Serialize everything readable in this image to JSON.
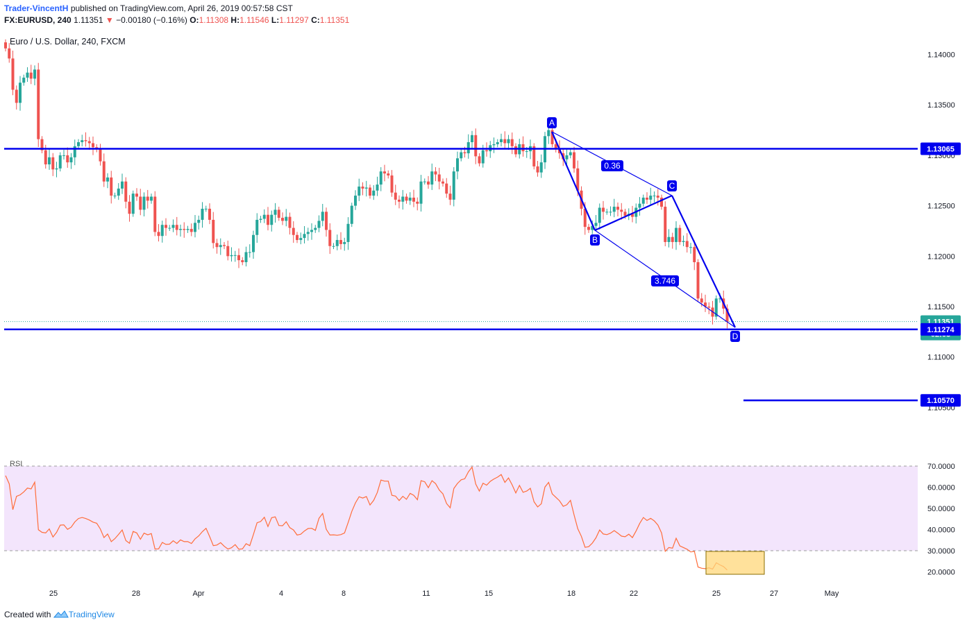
{
  "header": {
    "author": "Trader-VincentH",
    "published": "published on TradingView.com, April 26, 2019 00:57:58 CST",
    "symbol": "FX:EURUSD, 240",
    "last": "1.11351",
    "change": "−0.00180 (−0.16%)",
    "o_label": "O:",
    "o": "1.11308",
    "h_label": "H:",
    "h": "1.11546",
    "l_label": "L:",
    "l": "1.11297",
    "c_label": "C:",
    "c": "1.11351",
    "instrument": "Euro / U.S. Dollar, 240, FXCM"
  },
  "footer": {
    "created_with": "Created with",
    "brand": "TradingView"
  },
  "colors": {
    "up": "#26a69a",
    "down": "#ef5350",
    "line": "#0000ee",
    "rsi": "#ff6d3a",
    "rsi_band": "#f3e5fc"
  },
  "chart_data": [
    {
      "type": "candlestick",
      "title": "Euro / U.S. Dollar, 240, FXCM",
      "x_tick_labels": [
        "25",
        "28",
        "Apr",
        "4",
        "8",
        "11",
        "15",
        "18",
        "22",
        "25",
        "27",
        "May"
      ],
      "y_ticks": [
        "1.14000",
        "1.13500",
        "1.13000",
        "1.12500",
        "1.12000",
        "1.11500",
        "1.11000",
        "1.10500"
      ],
      "ylim": [
        1.1035,
        1.1435
      ],
      "closes": [
        1.1406,
        1.1396,
        1.1365,
        1.1352,
        1.1372,
        1.1377,
        1.1382,
        1.1376,
        1.1385,
        1.1316,
        1.1305,
        1.1291,
        1.1298,
        1.1286,
        1.1287,
        1.13,
        1.13,
        1.1293,
        1.1298,
        1.1309,
        1.1313,
        1.1315,
        1.1314,
        1.1312,
        1.1308,
        1.1306,
        1.1294,
        1.1274,
        1.1278,
        1.126,
        1.126,
        1.1267,
        1.1274,
        1.1254,
        1.1242,
        1.1262,
        1.1259,
        1.1246,
        1.1259,
        1.1255,
        1.1259,
        1.1224,
        1.122,
        1.1231,
        1.1228,
        1.1228,
        1.1231,
        1.1226,
        1.1227,
        1.1226,
        1.1227,
        1.1224,
        1.1233,
        1.1236,
        1.1247,
        1.1247,
        1.1236,
        1.1213,
        1.1209,
        1.1211,
        1.121,
        1.12,
        1.1201,
        1.1201,
        1.1196,
        1.1194,
        1.1204,
        1.1204,
        1.1221,
        1.1236,
        1.1237,
        1.1241,
        1.1231,
        1.1241,
        1.1246,
        1.1238,
        1.1235,
        1.1239,
        1.1228,
        1.1221,
        1.1216,
        1.1218,
        1.1222,
        1.1224,
        1.1226,
        1.1228,
        1.1235,
        1.1244,
        1.1226,
        1.121,
        1.121,
        1.1216,
        1.1212,
        1.1214,
        1.1232,
        1.125,
        1.126,
        1.1269,
        1.1267,
        1.1268,
        1.126,
        1.1265,
        1.1271,
        1.1284,
        1.1282,
        1.128,
        1.1263,
        1.1256,
        1.1254,
        1.1259,
        1.1255,
        1.1258,
        1.1254,
        1.1252,
        1.1274,
        1.1274,
        1.1271,
        1.1284,
        1.1281,
        1.1274,
        1.1272,
        1.1262,
        1.1256,
        1.1284,
        1.1297,
        1.1303,
        1.1302,
        1.1313,
        1.132,
        1.1299,
        1.1292,
        1.1305,
        1.1304,
        1.131,
        1.1311,
        1.1313,
        1.1316,
        1.1312,
        1.1316,
        1.1309,
        1.1301,
        1.1311,
        1.1304,
        1.1304,
        1.1309,
        1.1289,
        1.1283,
        1.1293,
        1.1319,
        1.1325,
        1.1311,
        1.1307,
        1.1302,
        1.1296,
        1.13,
        1.1303,
        1.1287,
        1.1265,
        1.1247,
        1.1229,
        1.1226,
        1.123,
        1.1233,
        1.1248,
        1.1244,
        1.1244,
        1.1244,
        1.1249,
        1.1246,
        1.1244,
        1.124,
        1.1242,
        1.1239,
        1.1248,
        1.1252,
        1.1258,
        1.1256,
        1.126,
        1.126,
        1.1258,
        1.1249,
        1.1214,
        1.1219,
        1.1214,
        1.1228,
        1.1214,
        1.1215,
        1.1209,
        1.1209,
        1.1194,
        1.1158,
        1.1154,
        1.115,
        1.1149,
        1.114,
        1.1158,
        1.1158,
        1.1148,
        1.1135
      ],
      "annotations": {
        "horizontal_lines": [
          "1.13065",
          "1.11274",
          "1.10570"
        ],
        "last_price": "1.11351",
        "countdown": "02:03",
        "pattern_points": [
          "A",
          "B",
          "C",
          "D"
        ],
        "ratios": [
          "0.36",
          "3.746"
        ]
      }
    },
    {
      "type": "line",
      "title": "RSI",
      "y_ticks": [
        "70.0000",
        "60.0000",
        "50.0000",
        "40.0000",
        "30.0000",
        "20.0000"
      ],
      "ylim": [
        16,
        73
      ],
      "band": [
        30,
        70
      ],
      "values": [
        65.5,
        61.6,
        49.4,
        55.7,
        56.4,
        57.8,
        59.6,
        59.2,
        62.4,
        39.9,
        38.7,
        38.4,
        40.3,
        36.5,
        38.7,
        42.1,
        42.2,
        40.1,
        41.1,
        43.6,
        45.2,
        45.7,
        45.2,
        44.5,
        43.5,
        43.0,
        40.3,
        36.2,
        37.9,
        34.3,
        35.7,
        37.7,
        39.8,
        34.8,
        33.5,
        39.1,
        38.4,
        35.4,
        38.3,
        37.5,
        38.1,
        30.8,
        30.9,
        33.9,
        33.0,
        33.1,
        34.7,
        33.4,
        35.1,
        34.3,
        34.3,
        33.4,
        35.6,
        37.0,
        39.0,
        40.6,
        36.7,
        32.4,
        32.7,
        33.8,
        32.1,
        30.8,
        31.4,
        32.9,
        30.7,
        30.9,
        33.3,
        32.4,
        37.6,
        43.2,
        43.8,
        45.8,
        41.4,
        45.6,
        46.0,
        41.9,
        41.8,
        43.7,
        40.9,
        39.8,
        37.4,
        37.8,
        39.3,
        40.5,
        40.6,
        39.6,
        45.3,
        47.6,
        40.1,
        37.4,
        37.5,
        37.3,
        37.6,
        38.4,
        43.3,
        48.6,
        52.6,
        55.5,
        54.9,
        55.6,
        51.6,
        53.8,
        57.5,
        63.4,
        62.9,
        62.9,
        56.2,
        55.8,
        53.7,
        55.7,
        54.3,
        57.1,
        56.2,
        54.1,
        63.1,
        62.6,
        59.8,
        63.1,
        61.7,
        58.7,
        56.9,
        52.3,
        50.3,
        59.4,
        61.8,
        63.5,
        64.0,
        67.3,
        69.5,
        61.5,
        58.2,
        61.9,
        61.0,
        62.8,
        63.9,
        64.8,
        66.0,
        62.3,
        64.4,
        61.1,
        57.3,
        60.9,
        57.6,
        58.2,
        59.5,
        53.1,
        50.7,
        52.2,
        60.1,
        62.3,
        56.9,
        55.2,
        53.6,
        51.0,
        51.7,
        53.8,
        46.9,
        40.4,
        36.8,
        31.6,
        31.9,
        33.6,
        36.1,
        39.8,
        37.9,
        37.6,
        38.3,
        39.5,
        38.3,
        36.9,
        36.6,
        37.8,
        36.2,
        39.3,
        42.9,
        45.7,
        44.3,
        45.3,
        44.1,
        42.1,
        38.4,
        29.7,
        31.5,
        31.2,
        35.9,
        32.3,
        31.5,
        30.7,
        29.4,
        29.7,
        22.3,
        21.7,
        21.5,
        21.9,
        21.3,
        24.3,
        23.3,
        22.5,
        20.9
      ]
    }
  ]
}
